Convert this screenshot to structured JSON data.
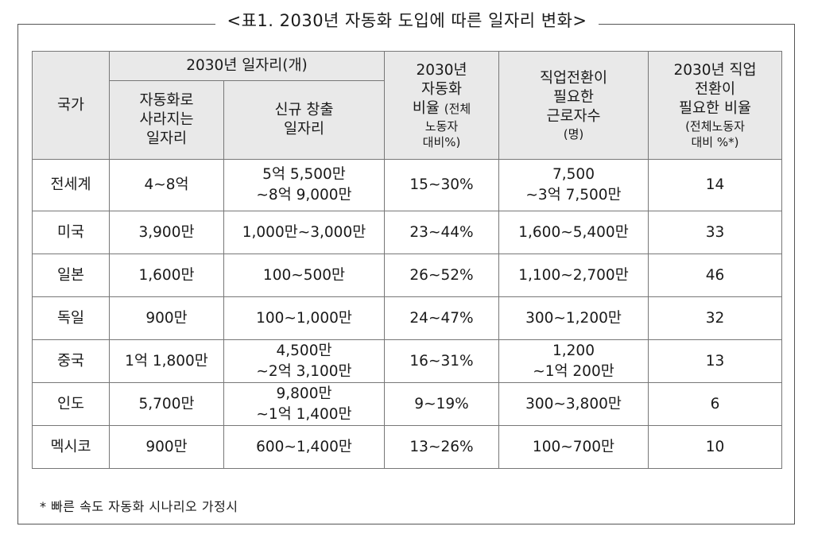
{
  "title": "<표1. 2030년 자동화 도입에 따른 일자리 변화>",
  "header": {
    "country": "국가",
    "jobs_group": "2030년 일자리(개)",
    "jobs_lost": [
      "자동화로",
      "사라지는",
      "일자리"
    ],
    "jobs_new": [
      "신규 창출",
      "일자리"
    ],
    "automation_rate": [
      "2030년",
      "자동화"
    ],
    "automation_rate_line3": "비율 ",
    "automation_rate_paren": "(전체",
    "automation_rate_small": [
      "노동자",
      "대비%)"
    ],
    "transition_workers": [
      "직업전환이",
      "필요한",
      "근로자수"
    ],
    "transition_workers_unit": "(명)",
    "transition_ratio": [
      "2030년 직업",
      "전환이",
      "필요한 비율"
    ],
    "transition_ratio_small": [
      "(전체노동자",
      "대비 %*)"
    ]
  },
  "rows": [
    {
      "country": "전세계",
      "lost": "4∼8억",
      "new": [
        "5억 5,500만",
        "∼8억 9,000만"
      ],
      "rate": "15∼30%",
      "workers": [
        "7,500",
        "∼3억 7,500만"
      ],
      "ratio": "14"
    },
    {
      "country": "미국",
      "lost": "3,900만",
      "new": [
        "1,000만∼3,000만"
      ],
      "rate": "23∼44%",
      "workers": [
        "1,600∼5,400만"
      ],
      "ratio": "33"
    },
    {
      "country": "일본",
      "lost": "1,600만",
      "new": [
        "100∼500만"
      ],
      "rate": "26∼52%",
      "workers": [
        "1,100∼2,700만"
      ],
      "ratio": "46"
    },
    {
      "country": "독일",
      "lost": "900만",
      "new": [
        "100∼1,000만"
      ],
      "rate": "24∼47%",
      "workers": [
        "300∼1,200만"
      ],
      "ratio": "32"
    },
    {
      "country": "중국",
      "lost": "1억 1,800만",
      "new": [
        "4,500만",
        "∼2억 3,100만"
      ],
      "rate": "16∼31%",
      "workers": [
        "1,200",
        "∼1억 200만"
      ],
      "ratio": "13"
    },
    {
      "country": "인도",
      "lost": "5,700만",
      "new": [
        "9,800만",
        "∼1억 1,400만"
      ],
      "rate": "9∼19%",
      "workers": [
        "300∼3,800만"
      ],
      "ratio": "6"
    },
    {
      "country": "멕시코",
      "lost": "900만",
      "new": [
        "600∼1,400만"
      ],
      "rate": "13∼26%",
      "workers": [
        "100∼700만"
      ],
      "ratio": "10"
    }
  ],
  "footnote": "* 빠른 속도 자동화 시나리오 가정시"
}
